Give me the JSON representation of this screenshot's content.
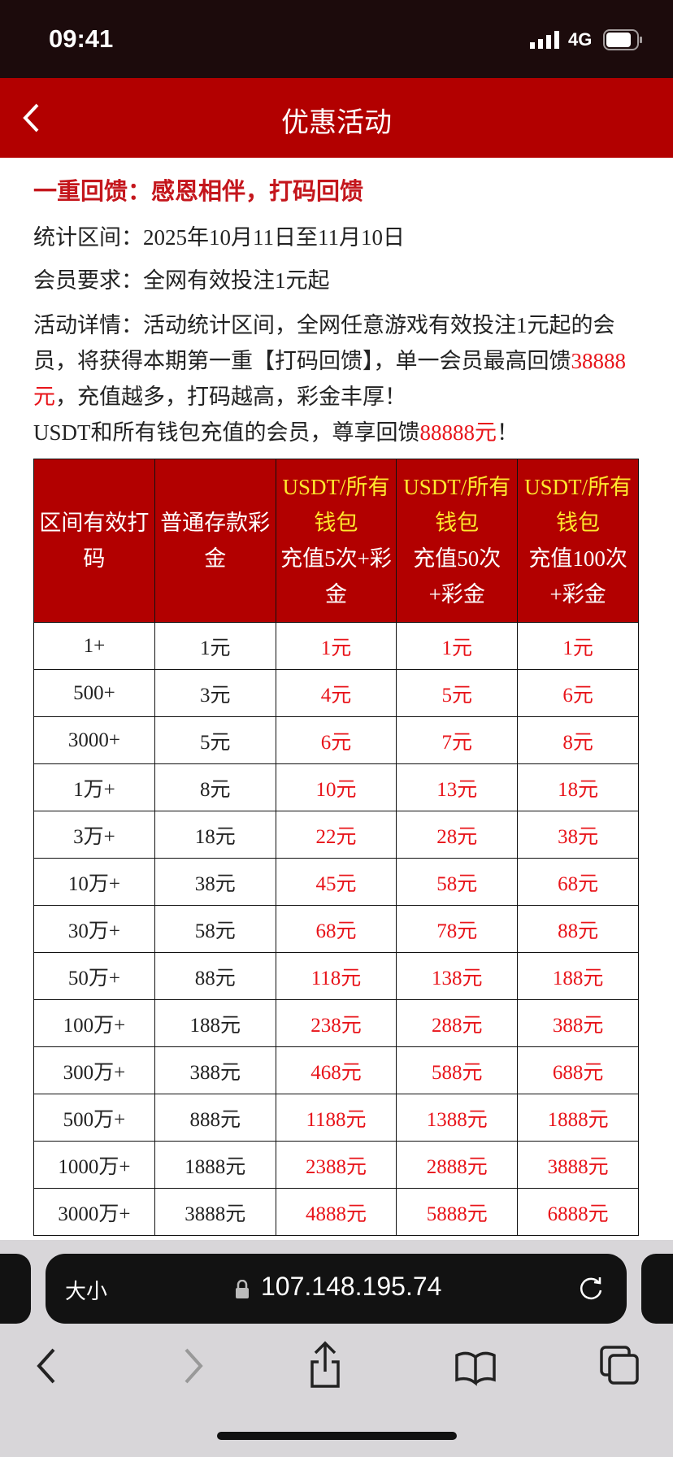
{
  "status_bar": {
    "time": "09:41",
    "network": "4G"
  },
  "header": {
    "title": "优惠活动"
  },
  "content": {
    "headline": "一重回馈：感恩相伴，打码回馈",
    "period": "统计区间：2025年10月11日至11月10日",
    "requirement": "会员要求：全网有效投注1元起",
    "details": [
      "活动详情：活动统计区间，全网任意游戏有效投注1元起的会员，将获得本期第一重【打码回馈】，单一会员最高回馈",
      "38888元",
      "，充值越多，打码越高，彩金丰厚！",
      "USDT和所有钱包充值的会员，尊享回馈",
      "88888元",
      "！"
    ]
  },
  "table": {
    "header": [
      {
        "text": "区间有效打码"
      },
      {
        "text": "普通存款彩金"
      },
      {
        "highlight": "USDT/所有钱包",
        "text": "充值5次+彩金"
      },
      {
        "highlight": "USDT/所有钱包",
        "text": "充值50次+彩金"
      },
      {
        "highlight": "USDT/所有钱包",
        "text": "充值100次+彩金"
      }
    ],
    "rows": [
      [
        "1+",
        "1元",
        "1元",
        "1元",
        "1元"
      ],
      [
        "500+",
        "3元",
        "4元",
        "5元",
        "6元"
      ],
      [
        "3000+",
        "5元",
        "6元",
        "7元",
        "8元"
      ],
      [
        "1万+",
        "8元",
        "10元",
        "13元",
        "18元"
      ],
      [
        "3万+",
        "18元",
        "22元",
        "28元",
        "38元"
      ],
      [
        "10万+",
        "38元",
        "45元",
        "58元",
        "68元"
      ],
      [
        "30万+",
        "58元",
        "68元",
        "78元",
        "88元"
      ],
      [
        "50万+",
        "88元",
        "118元",
        "138元",
        "188元"
      ],
      [
        "100万+",
        "188元",
        "238元",
        "288元",
        "388元"
      ],
      [
        "300万+",
        "388元",
        "468元",
        "588元",
        "688元"
      ],
      [
        "500万+",
        "888元",
        "1188元",
        "1388元",
        "1888元"
      ],
      [
        "1000万+",
        "1888元",
        "2388元",
        "2888元",
        "3888元"
      ],
      [
        "3000万+",
        "3888元",
        "4888元",
        "5888元",
        "6888元"
      ]
    ]
  },
  "browser": {
    "text_size": "大小",
    "url": "107.148.195.74"
  }
}
